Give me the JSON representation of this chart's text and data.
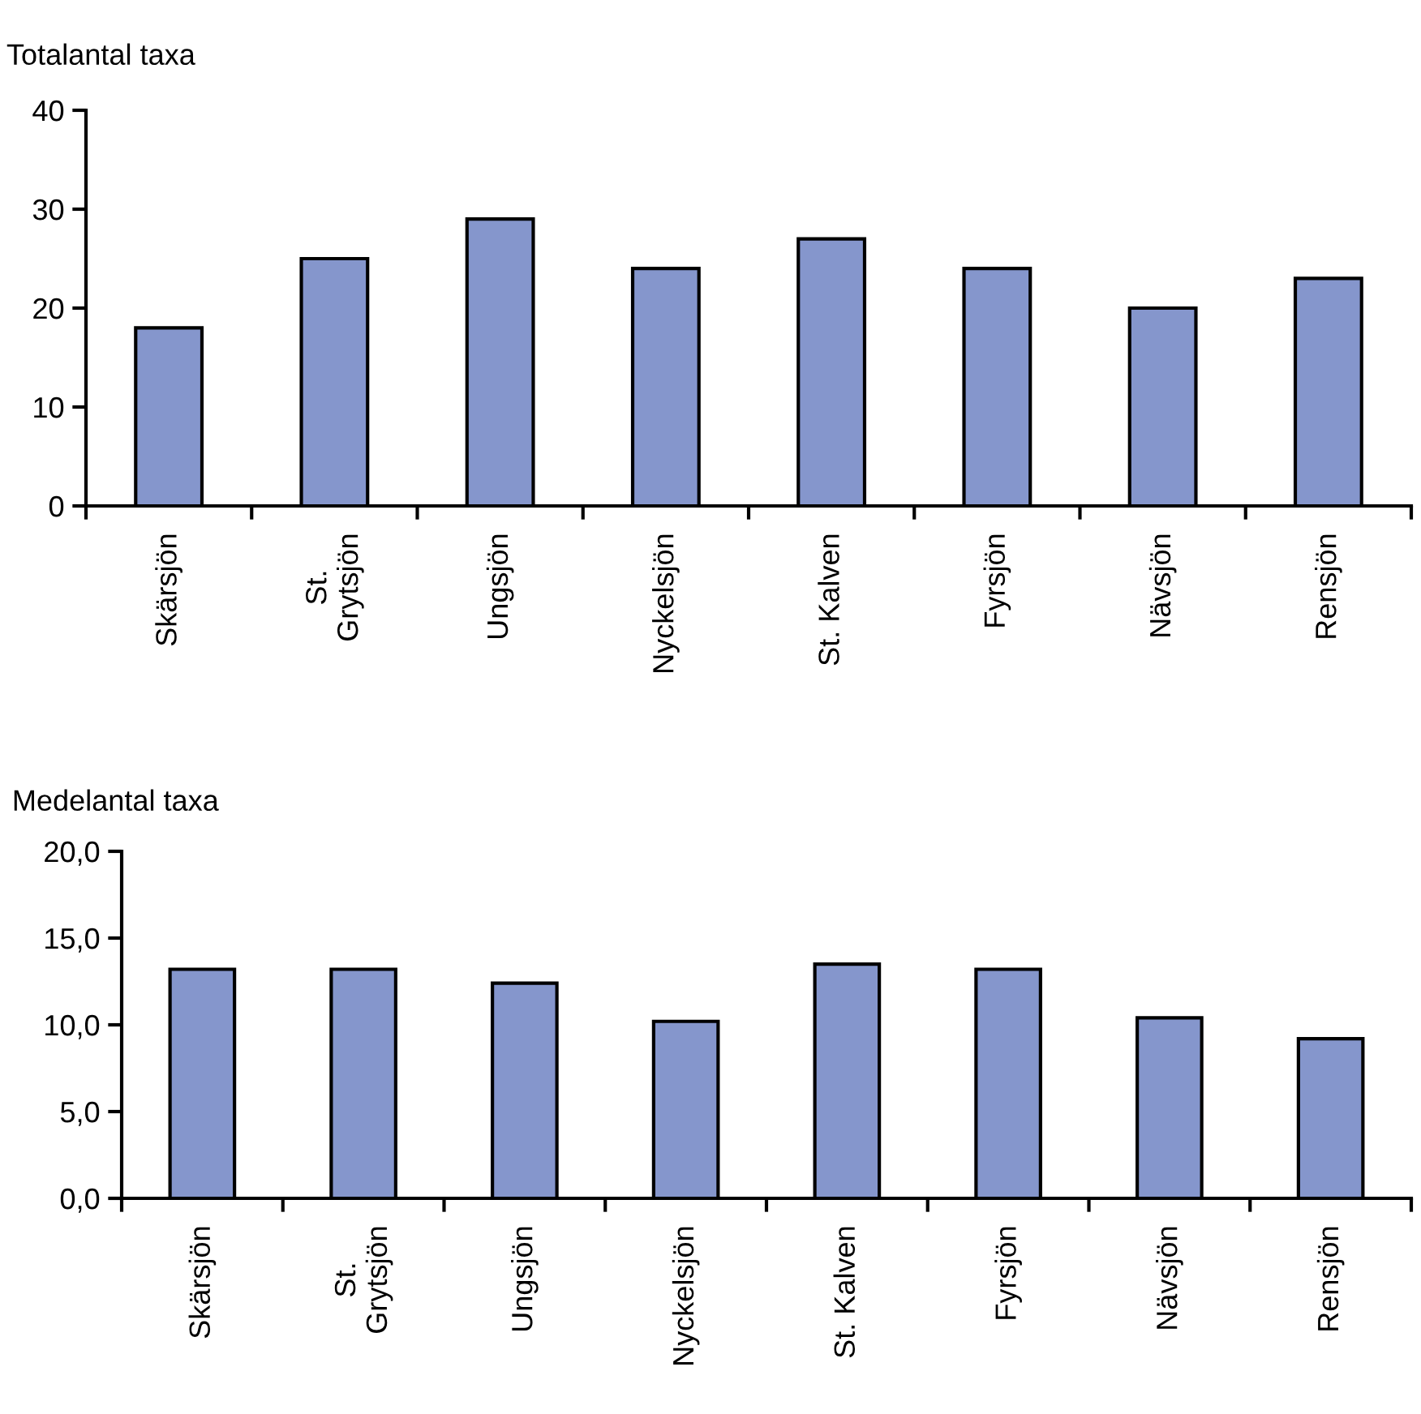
{
  "chart_data": [
    {
      "type": "bar",
      "title": "Totalantal taxa",
      "categories": [
        "Skärsjön",
        "St.\nGrytsjön",
        "Ungsjön",
        "Nyckelsjön",
        "St. Kalven",
        "Fyrsjön",
        "Nävsjön",
        "Rensjön"
      ],
      "values": [
        18,
        25,
        29,
        24,
        27,
        24,
        20,
        23
      ],
      "color": "#8596cc",
      "ylim": [
        0,
        40
      ],
      "yticks": [
        0,
        10,
        20,
        30,
        40
      ],
      "grid": false,
      "legend": false
    },
    {
      "type": "bar",
      "title": "Medelantal taxa",
      "categories": [
        "Skärsjön",
        "St.\nGrytsjön",
        "Ungsjön",
        "Nyckelsjön",
        "St. Kalven",
        "Fyrsjön",
        "Nävsjön",
        "Rensjön"
      ],
      "values": [
        13.2,
        13.2,
        12.4,
        10.2,
        13.5,
        13.2,
        10.4,
        9.2
      ],
      "color": "#8596cc",
      "ylim": [
        0,
        20
      ],
      "yticks": [
        {
          "value": 0,
          "label": "0,0"
        },
        {
          "value": 5,
          "label": "5,0"
        },
        {
          "value": 10,
          "label": "10,0"
        },
        {
          "value": 15,
          "label": "15,0"
        },
        {
          "value": 20,
          "label": "20,0"
        }
      ],
      "grid": false,
      "legend": false
    }
  ]
}
